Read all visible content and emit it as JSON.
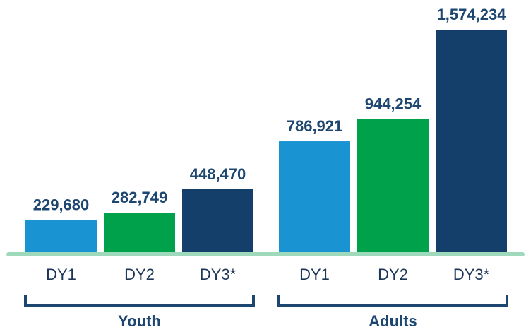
{
  "chart_data": {
    "type": "bar",
    "groups": [
      {
        "name": "Youth",
        "categories": [
          "DY1",
          "DY2",
          "DY3*"
        ],
        "values": [
          229680,
          282749,
          448470
        ],
        "value_labels": [
          "229,680",
          "282,749",
          "448,470"
        ],
        "colors": [
          "#1a93d3",
          "#00a14b",
          "#143f6b"
        ]
      },
      {
        "name": "Adults",
        "categories": [
          "DY1",
          "DY2",
          "DY3*"
        ],
        "values": [
          786921,
          944254,
          1574234
        ],
        "value_labels": [
          "786,921",
          "944,254",
          "1,574,234"
        ],
        "colors": [
          "#1a93d3",
          "#00a14b",
          "#143f6b"
        ]
      }
    ]
  }
}
